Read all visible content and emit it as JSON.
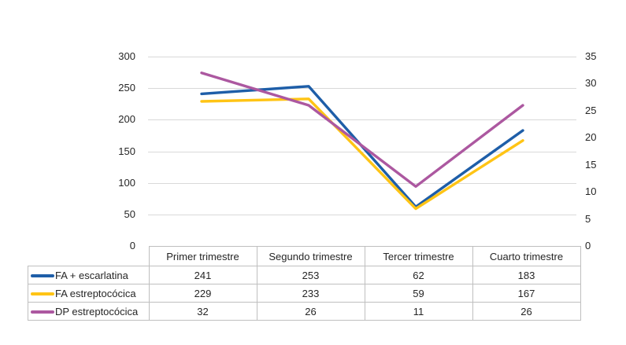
{
  "chart_data": {
    "type": "line",
    "categories": [
      "Primer trimestre",
      "Segundo trimestre",
      "Tercer trimestre",
      "Cuarto trimestre"
    ],
    "series": [
      {
        "name": "FA + escarlatina",
        "values": [
          241,
          253,
          62,
          183
        ],
        "axis": "left",
        "color": "#1E5EA8"
      },
      {
        "name": "FA estreptocócica",
        "values": [
          229,
          233,
          59,
          167
        ],
        "axis": "left",
        "color": "#FFC415"
      },
      {
        "name": "DP estreptocócica",
        "values": [
          32,
          26,
          11,
          26
        ],
        "axis": "right",
        "color": "#AC58A0"
      }
    ],
    "left_axis": {
      "min": 0,
      "max": 300,
      "step": 50,
      "ticks": [
        "300",
        "250",
        "200",
        "150",
        "100",
        "50",
        "0"
      ]
    },
    "right_axis": {
      "min": 0,
      "max": 35,
      "step": 5,
      "ticks": [
        "35",
        "30",
        "25",
        "20",
        "15",
        "10",
        "5",
        "0"
      ]
    },
    "grid": true,
    "legend_position": "data-table-left-column",
    "title": ""
  },
  "colors": {
    "background": "#FFFFFF",
    "gridline": "#D9D9D9",
    "table_border": "#BFBFBF",
    "text": "#262626",
    "series_blue": "#1E5EA8",
    "series_yellow": "#FFC415",
    "series_purple": "#AC58A0"
  }
}
